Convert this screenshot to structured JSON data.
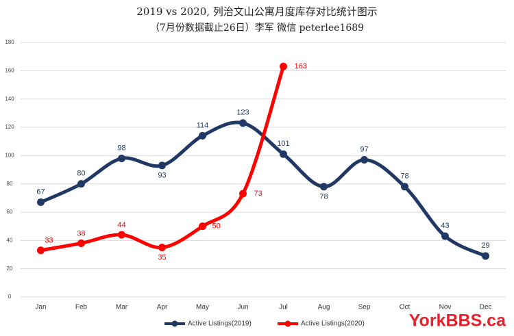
{
  "chart_data": {
    "type": "line",
    "title": "2019 vs 2020, 列治文山公寓月度库存对比统计图示",
    "subtitle": "（7月份数据截止26日）李军 微信 peterlee1689",
    "categories": [
      "Jan",
      "Feb",
      "Mar",
      "Apr",
      "May",
      "Jun",
      "Jul",
      "Aug",
      "Sep",
      "Oct",
      "Nov",
      "Dec"
    ],
    "series": [
      {
        "name": "Active Listings(2019)",
        "color": "#203864",
        "values": [
          67,
          80,
          98,
          93,
          114,
          123,
          101,
          78,
          97,
          78,
          43,
          29
        ]
      },
      {
        "name": "Active Listings(2020)",
        "color": "#ff0000",
        "values": [
          33,
          38,
          44,
          35,
          50,
          73,
          163,
          null,
          null,
          null,
          null,
          null
        ]
      }
    ],
    "ylim": [
      0,
      180
    ],
    "yticks": [
      0,
      20,
      40,
      60,
      80,
      100,
      120,
      140,
      160,
      180
    ],
    "grid": true,
    "legend": "bottom",
    "watermark": "YorkBBS.ca"
  }
}
